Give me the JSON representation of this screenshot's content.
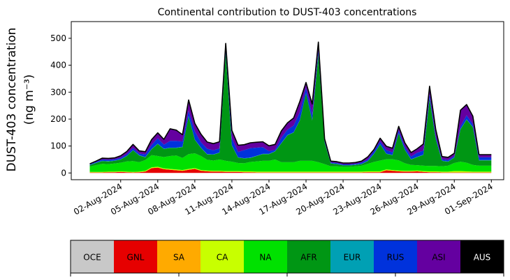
{
  "chart_data": {
    "type": "area",
    "stacked": true,
    "title": "Continental contribution to DUST-403 concentrations",
    "ylabel_line1": "DUST-403 concentration",
    "ylabel_line2": "(ng m⁻³)",
    "ylim": [
      -25,
      562
    ],
    "yticks": [
      0,
      100,
      200,
      300,
      400,
      500
    ],
    "xlim": [
      "2024-07-29T00:00",
      "2024-09-02T00:00"
    ],
    "xticks": [
      {
        "date": "2024-08-02",
        "label": "02-Aug-2024"
      },
      {
        "date": "2024-08-05",
        "label": "05-Aug-2024"
      },
      {
        "date": "2024-08-08",
        "label": "08-Aug-2024"
      },
      {
        "date": "2024-08-11",
        "label": "11-Aug-2024"
      },
      {
        "date": "2024-08-14",
        "label": "14-Aug-2024"
      },
      {
        "date": "2024-08-17",
        "label": "17-Aug-2024"
      },
      {
        "date": "2024-08-20",
        "label": "20-Aug-2024"
      },
      {
        "date": "2024-08-23",
        "label": "23-Aug-2024"
      },
      {
        "date": "2024-08-26",
        "label": "26-Aug-2024"
      },
      {
        "date": "2024-08-29",
        "label": "29-Aug-2024"
      },
      {
        "date": "2024-09-01",
        "label": "01-Sep-2024"
      }
    ],
    "x": [
      "2024-07-30T12:00",
      "2024-07-31T00:00",
      "2024-07-31T12:00",
      "2024-08-01T00:00",
      "2024-08-01T12:00",
      "2024-08-02T00:00",
      "2024-08-02T12:00",
      "2024-08-03T00:00",
      "2024-08-03T12:00",
      "2024-08-04T00:00",
      "2024-08-04T12:00",
      "2024-08-05T00:00",
      "2024-08-05T12:00",
      "2024-08-06T00:00",
      "2024-08-06T12:00",
      "2024-08-07T00:00",
      "2024-08-07T12:00",
      "2024-08-08T00:00",
      "2024-08-08T12:00",
      "2024-08-09T00:00",
      "2024-08-09T12:00",
      "2024-08-10T00:00",
      "2024-08-10T12:00",
      "2024-08-11T00:00",
      "2024-08-11T12:00",
      "2024-08-12T00:00",
      "2024-08-12T12:00",
      "2024-08-13T00:00",
      "2024-08-13T12:00",
      "2024-08-14T00:00",
      "2024-08-14T12:00",
      "2024-08-15T00:00",
      "2024-08-15T12:00",
      "2024-08-16T00:00",
      "2024-08-16T12:00",
      "2024-08-17T00:00",
      "2024-08-17T12:00",
      "2024-08-18T00:00",
      "2024-08-18T12:00",
      "2024-08-19T00:00",
      "2024-08-19T12:00",
      "2024-08-20T00:00",
      "2024-08-20T12:00",
      "2024-08-21T00:00",
      "2024-08-21T12:00",
      "2024-08-22T00:00",
      "2024-08-22T12:00",
      "2024-08-23T00:00",
      "2024-08-23T12:00",
      "2024-08-24T00:00",
      "2024-08-24T12:00",
      "2024-08-25T00:00",
      "2024-08-25T12:00",
      "2024-08-26T00:00",
      "2024-08-26T12:00",
      "2024-08-27T00:00",
      "2024-08-27T12:00",
      "2024-08-28T00:00",
      "2024-08-28T12:00",
      "2024-08-29T00:00",
      "2024-08-29T12:00",
      "2024-08-30T00:00",
      "2024-08-30T12:00",
      "2024-08-31T00:00",
      "2024-08-31T12:00",
      "2024-09-01T00:00"
    ],
    "series": [
      {
        "name": "OCE",
        "color": "#c8c8c8",
        "values": [
          0,
          0,
          0,
          0,
          0,
          0,
          0,
          0,
          0,
          0,
          0,
          0,
          0,
          0,
          0,
          0,
          0,
          0,
          0,
          0,
          0,
          0,
          0,
          0,
          0,
          0,
          0,
          0,
          0,
          0,
          0,
          0,
          0,
          0,
          0,
          0,
          0,
          0,
          0,
          0,
          0,
          0,
          0,
          0,
          0,
          0,
          0,
          0,
          0,
          0,
          0,
          0,
          0,
          0,
          0,
          0,
          0,
          0,
          0,
          0,
          0,
          0,
          0,
          0,
          0,
          0
        ]
      },
      {
        "name": "GNL",
        "color": "#e60000",
        "values": [
          2,
          2,
          2,
          3,
          3,
          4,
          3,
          2,
          3,
          5,
          18,
          20,
          14,
          12,
          10,
          8,
          12,
          15,
          8,
          6,
          5,
          5,
          4,
          4,
          4,
          3,
          3,
          2,
          2,
          2,
          2,
          2,
          2,
          2,
          2,
          2,
          2,
          2,
          2,
          2,
          2,
          2,
          2,
          2,
          2,
          3,
          3,
          3,
          10,
          8,
          6,
          5,
          5,
          6,
          4,
          3,
          3,
          2,
          2,
          2,
          2,
          2,
          2,
          2,
          2,
          2
        ]
      },
      {
        "name": "SA",
        "color": "#ffaa00",
        "values": [
          0,
          0,
          0,
          0,
          0,
          0,
          0,
          0,
          0,
          0,
          0,
          0,
          0,
          0,
          0,
          0,
          0,
          0,
          0,
          0,
          0,
          0,
          0,
          0,
          0,
          0,
          0,
          0,
          0,
          0,
          0,
          0,
          0,
          0,
          0,
          0,
          0,
          0,
          0,
          0,
          0,
          0,
          0,
          0,
          0,
          0,
          0,
          0,
          0,
          0,
          0,
          0,
          0,
          0,
          0,
          0,
          0,
          0,
          0,
          0,
          0,
          0,
          0,
          0,
          0,
          0
        ]
      },
      {
        "name": "CA",
        "color": "#c8ff00",
        "values": [
          2,
          2,
          2,
          2,
          2,
          2,
          2,
          2,
          2,
          3,
          3,
          3,
          3,
          3,
          3,
          3,
          3,
          3,
          3,
          3,
          3,
          3,
          3,
          3,
          3,
          3,
          3,
          3,
          3,
          3,
          3,
          3,
          3,
          3,
          3,
          3,
          3,
          3,
          3,
          3,
          3,
          3,
          3,
          3,
          3,
          3,
          3,
          3,
          3,
          3,
          3,
          3,
          3,
          3,
          3,
          3,
          3,
          3,
          3,
          5,
          5,
          4,
          3,
          3,
          3,
          3
        ]
      },
      {
        "name": "NA",
        "color": "#00e100",
        "values": [
          20,
          25,
          30,
          28,
          30,
          32,
          38,
          40,
          35,
          40,
          45,
          40,
          42,
          48,
          52,
          45,
          55,
          55,
          52,
          40,
          38,
          42,
          38,
          35,
          30,
          30,
          35,
          38,
          40,
          40,
          45,
          35,
          35,
          35,
          40,
          40,
          40,
          35,
          28,
          20,
          20,
          18,
          18,
          20,
          22,
          28,
          35,
          40,
          38,
          40,
          38,
          28,
          22,
          20,
          20,
          20,
          20,
          20,
          22,
          30,
          35,
          32,
          25,
          22,
          22,
          22
        ]
      },
      {
        "name": "AFR",
        "color": "#009614",
        "values": [
          5,
          8,
          10,
          10,
          10,
          12,
          20,
          40,
          25,
          10,
          22,
          45,
          30,
          30,
          28,
          40,
          140,
          50,
          30,
          20,
          22,
          25,
          400,
          60,
          20,
          18,
          15,
          20,
          25,
          25,
          30,
          70,
          100,
          110,
          150,
          250,
          150,
          400,
          80,
          10,
          8,
          5,
          5,
          5,
          6,
          10,
          30,
          60,
          20,
          15,
          100,
          50,
          20,
          30,
          40,
          250,
          100,
          20,
          15,
          20,
          120,
          160,
          140,
          20,
          20,
          20
        ]
      },
      {
        "name": "EUR",
        "color": "#00a0b4",
        "values": [
          1,
          1,
          1,
          1,
          1,
          1,
          1,
          1,
          1,
          1,
          1,
          1,
          1,
          1,
          1,
          1,
          1,
          1,
          1,
          1,
          1,
          1,
          1,
          1,
          1,
          1,
          1,
          1,
          1,
          1,
          1,
          1,
          1,
          1,
          1,
          1,
          1,
          1,
          1,
          1,
          1,
          1,
          1,
          1,
          1,
          1,
          1,
          1,
          1,
          1,
          1,
          1,
          1,
          1,
          1,
          1,
          1,
          1,
          1,
          1,
          1,
          1,
          1,
          1,
          1,
          1
        ]
      },
      {
        "name": "RUS",
        "color": "#0032dc",
        "values": [
          2,
          3,
          5,
          5,
          5,
          5,
          6,
          8,
          6,
          10,
          15,
          20,
          15,
          25,
          25,
          20,
          20,
          30,
          20,
          20,
          15,
          15,
          20,
          25,
          20,
          30,
          35,
          30,
          25,
          10,
          5,
          20,
          20,
          25,
          30,
          20,
          20,
          15,
          5,
          3,
          3,
          3,
          3,
          3,
          5,
          5,
          10,
          10,
          12,
          10,
          10,
          10,
          10,
          15,
          15,
          15,
          10,
          5,
          5,
          5,
          10,
          15,
          10,
          10,
          10,
          10
        ]
      },
      {
        "name": "ASI",
        "color": "#6400a0",
        "values": [
          2,
          3,
          5,
          5,
          5,
          8,
          10,
          13,
          10,
          10,
          20,
          20,
          20,
          45,
          40,
          25,
          40,
          30,
          30,
          25,
          25,
          25,
          15,
          30,
          25,
          20,
          20,
          20,
          20,
          20,
          20,
          25,
          25,
          28,
          40,
          20,
          40,
          30,
          8,
          5,
          5,
          5,
          5,
          5,
          5,
          10,
          5,
          12,
          15,
          15,
          15,
          15,
          15,
          15,
          25,
          30,
          25,
          10,
          10,
          10,
          60,
          40,
          30,
          10,
          10,
          10
        ]
      },
      {
        "name": "AUS",
        "color": "#000000",
        "values": [
          0,
          0,
          0,
          0,
          0,
          0,
          0,
          0,
          0,
          0,
          0,
          0,
          0,
          0,
          0,
          0,
          0,
          0,
          0,
          0,
          0,
          0,
          0,
          0,
          0,
          0,
          0,
          0,
          0,
          0,
          0,
          0,
          0,
          0,
          0,
          0,
          0,
          0,
          0,
          0,
          0,
          0,
          0,
          0,
          0,
          0,
          0,
          0,
          0,
          0,
          0,
          0,
          0,
          0,
          0,
          0,
          0,
          0,
          0,
          0,
          0,
          0,
          0,
          0,
          0,
          0
        ]
      }
    ]
  },
  "legend": {
    "items": [
      {
        "label": "OCE",
        "color": "#c8c8c8",
        "text_color": "#000000"
      },
      {
        "label": "GNL",
        "color": "#e60000",
        "text_color": "#000000"
      },
      {
        "label": "SA",
        "color": "#ffaa00",
        "text_color": "#000000"
      },
      {
        "label": "CA",
        "color": "#c8ff00",
        "text_color": "#000000"
      },
      {
        "label": "NA",
        "color": "#00e100",
        "text_color": "#000000"
      },
      {
        "label": "AFR",
        "color": "#009614",
        "text_color": "#000000"
      },
      {
        "label": "EUR",
        "color": "#00a0b4",
        "text_color": "#000000"
      },
      {
        "label": "RUS",
        "color": "#0032dc",
        "text_color": "#000000"
      },
      {
        "label": "ASI",
        "color": "#6400a0",
        "text_color": "#000000"
      },
      {
        "label": "AUS",
        "color": "#000000",
        "text_color": "#ffffff"
      }
    ]
  }
}
